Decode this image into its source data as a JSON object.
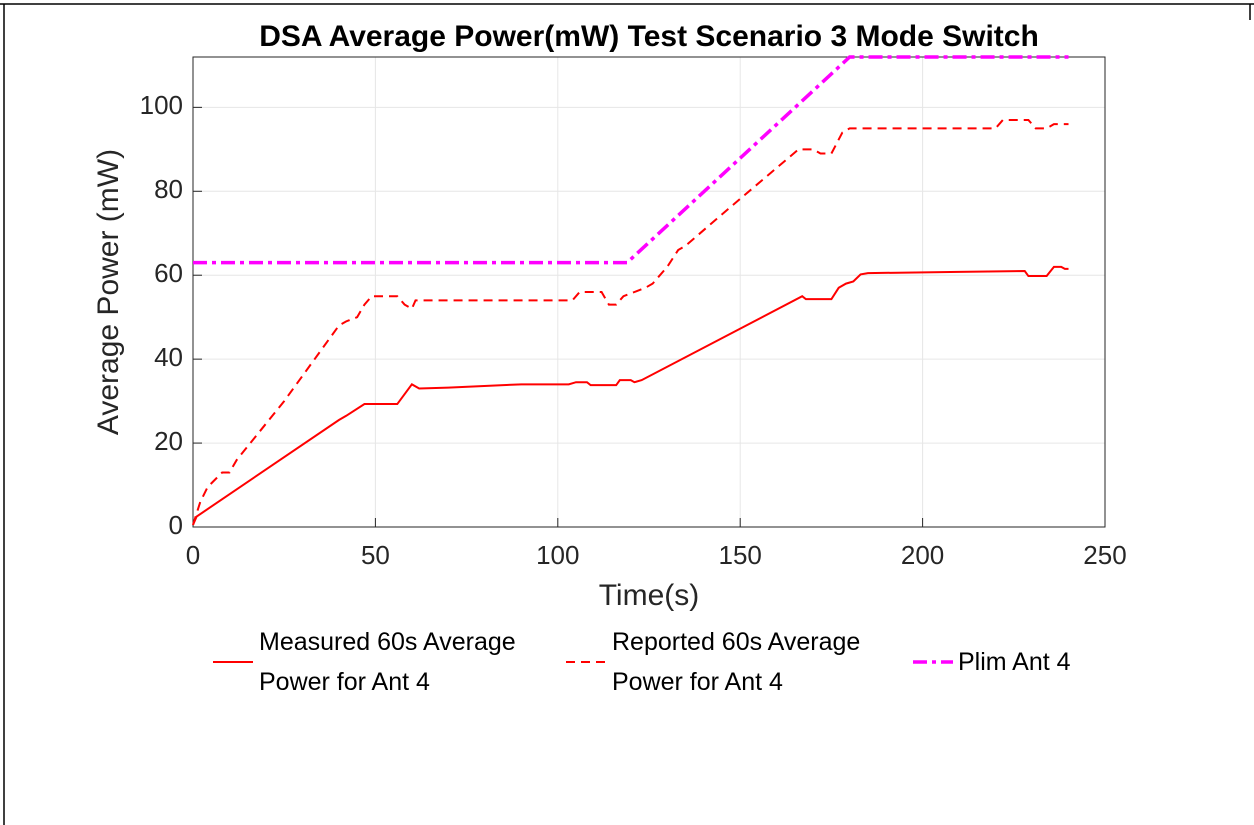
{
  "chart_data": {
    "type": "line",
    "title": "DSA Average Power(mW) Test Scenario 3 Mode Switch",
    "xlabel": "Time(s)",
    "ylabel": "Average Power (mW)",
    "xlim": [
      0,
      250
    ],
    "xticks": [
      0,
      50,
      100,
      150,
      200,
      250
    ],
    "ylim": [
      0,
      112
    ],
    "yticks": [
      0,
      20,
      40,
      60,
      80,
      100
    ],
    "grid": true,
    "legend": "bottom",
    "series": [
      {
        "name": "Measured 60s Average Power for Ant 4",
        "color": "#ff0000",
        "dash": "solid",
        "x": [
          0,
          1,
          40,
          42,
          47,
          56,
          60,
          62,
          70,
          90,
          103,
          105,
          108,
          109,
          116,
          117,
          120,
          121,
          123,
          167,
          168,
          175,
          177,
          179,
          181,
          183,
          185,
          210,
          228,
          229,
          234,
          236,
          238,
          239,
          240
        ],
        "values": [
          0.5,
          2.5,
          25.5,
          26.5,
          29.3,
          29.3,
          34,
          33,
          33.2,
          34,
          34,
          34.5,
          34.5,
          33.8,
          33.8,
          35,
          35,
          34.5,
          35,
          55,
          54.3,
          54.3,
          57,
          58,
          58.5,
          60.2,
          60.5,
          60.8,
          61,
          59.8,
          59.8,
          62,
          62,
          61.5,
          61.5
        ]
      },
      {
        "name": "Reported 60s Average Power for Ant 4",
        "color": "#ff0000",
        "dash": "dashed",
        "x": [
          0,
          2,
          4,
          8,
          10,
          12,
          25,
          35,
          40,
          42,
          45,
          47,
          49,
          56,
          58,
          60,
          61,
          104,
          106,
          112,
          114,
          116,
          118,
          121,
          124,
          126,
          130,
          133,
          135,
          147,
          166,
          170,
          172,
          175,
          178,
          180,
          220,
          222,
          229,
          231,
          234,
          236,
          240
        ],
        "values": [
          0.5,
          6,
          9.5,
          13,
          13,
          16,
          30,
          42,
          48,
          49,
          50,
          53,
          55,
          55,
          53,
          52,
          54,
          54,
          56,
          56,
          53,
          53,
          55,
          56,
          57,
          58,
          62,
          66,
          67,
          76,
          90,
          90,
          89,
          89,
          94,
          95,
          95,
          97,
          97,
          95,
          95,
          96,
          96
        ]
      },
      {
        "name": "Plim Ant 4",
        "color": "#ff00ff",
        "dash": "dashdot",
        "x": [
          0,
          119,
          180,
          240
        ],
        "values": [
          63,
          63,
          112,
          112
        ]
      }
    ]
  }
}
